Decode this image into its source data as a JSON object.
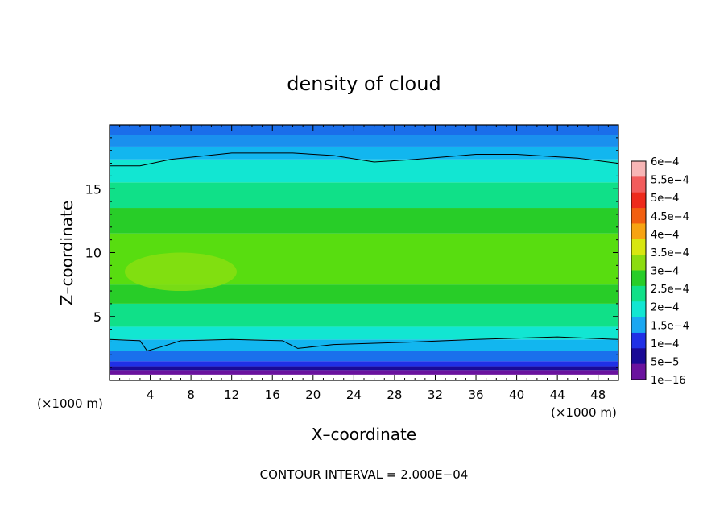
{
  "chart_data": {
    "type": "heatmap",
    "title": "density of cloud",
    "xlabel": "X–coordinate",
    "ylabel": "Z–coordinate",
    "x_unit_left": "(×1000 m)",
    "x_unit_right": "(×1000 m)",
    "xlim": [
      0,
      50
    ],
    "ylim": [
      0,
      20
    ],
    "x_ticks": [
      4,
      8,
      12,
      16,
      20,
      24,
      28,
      32,
      36,
      40,
      44,
      48
    ],
    "y_ticks": [
      5,
      10,
      15
    ],
    "colorbar": {
      "labels": [
        "6e−4",
        "5.5e−4",
        "5e−4",
        "4.5e−4",
        "4e−4",
        "3.5e−4",
        "3e−4",
        "2.5e−4",
        "2e−4",
        "1.5e−4",
        "1e−4",
        "5e−5",
        "1e−16"
      ],
      "colors": [
        "#f7b5b5",
        "#f25c5c",
        "#ee2a1c",
        "#f25f10",
        "#f7a312",
        "#d8e610",
        "#8cdc10",
        "#28cd28",
        "#10e088",
        "#12e6d2",
        "#1aa7f2",
        "#2030e6",
        "#1a0a96",
        "#6a129e"
      ]
    },
    "footer": "CONTOUR INTERVAL = 2.000E−04",
    "bands_z": [
      {
        "z0": 0.0,
        "z1": 0.45,
        "color": "#ffffff"
      },
      {
        "z0": 0.45,
        "z1": 0.8,
        "color": "#6a129e"
      },
      {
        "z0": 0.8,
        "z1": 1.1,
        "color": "#1a0a96"
      },
      {
        "z0": 1.1,
        "z1": 1.5,
        "color": "#2030e6"
      },
      {
        "z0": 1.5,
        "z1": 2.3,
        "color": "#1a70ec"
      },
      {
        "z0": 2.3,
        "z1": 3.2,
        "color": "#12b6ef"
      },
      {
        "z0": 3.2,
        "z1": 4.2,
        "color": "#12e6d2"
      },
      {
        "z0": 4.2,
        "z1": 6.0,
        "color": "#10e088"
      },
      {
        "z0": 6.0,
        "z1": 7.5,
        "color": "#28cd28"
      },
      {
        "z0": 7.5,
        "z1": 11.5,
        "color": "#58dd10"
      },
      {
        "z0": 11.5,
        "z1": 13.5,
        "color": "#28cd28"
      },
      {
        "z0": 13.5,
        "z1": 15.5,
        "color": "#10e088"
      },
      {
        "z0": 15.5,
        "z1": 17.3,
        "color": "#12e6d2"
      },
      {
        "z0": 17.3,
        "z1": 18.3,
        "color": "#12b6ef"
      },
      {
        "z0": 18.3,
        "z1": 19.2,
        "color": "#1a90ee"
      },
      {
        "z0": 19.2,
        "z1": 20.0,
        "color": "#1a6eea"
      }
    ],
    "core": {
      "x": 7,
      "z": 8.5,
      "color": "#8ce010"
    },
    "upper_contour": [
      [
        0,
        16.8
      ],
      [
        3,
        16.8
      ],
      [
        6,
        17.3
      ],
      [
        12,
        17.8
      ],
      [
        18,
        17.8
      ],
      [
        22,
        17.6
      ],
      [
        26,
        17.1
      ],
      [
        30,
        17.3
      ],
      [
        36,
        17.7
      ],
      [
        40,
        17.7
      ],
      [
        46,
        17.4
      ],
      [
        50,
        17.0
      ]
    ],
    "lower_contour": [
      [
        0,
        3.2
      ],
      [
        3,
        3.1
      ],
      [
        3.7,
        2.3
      ],
      [
        5,
        2.6
      ],
      [
        7,
        3.1
      ],
      [
        12,
        3.2
      ],
      [
        17,
        3.1
      ],
      [
        18.5,
        2.5
      ],
      [
        22,
        2.8
      ],
      [
        30,
        3.0
      ],
      [
        36,
        3.2
      ],
      [
        44,
        3.4
      ],
      [
        50,
        3.2
      ]
    ]
  }
}
